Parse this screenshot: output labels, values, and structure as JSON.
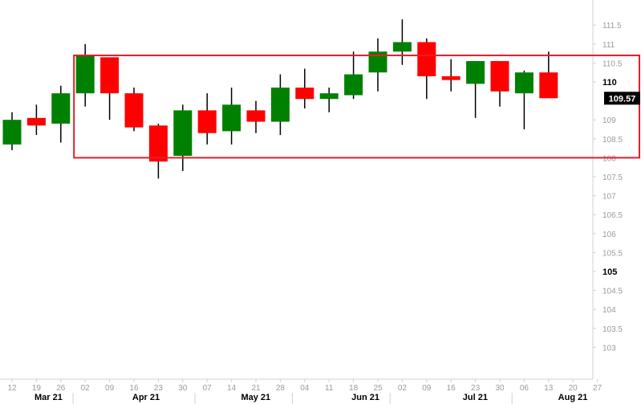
{
  "chart_data": {
    "type": "candlestick",
    "title": "",
    "xlabel": "",
    "ylabel": "",
    "ylim": [
      102.6,
      111.9
    ],
    "grid": false,
    "colors": {
      "up": "#008000",
      "down": "#ff0000",
      "highlight_box": "#e0202a",
      "last_value_bg": "#000000",
      "axis": "#d0d0d0"
    },
    "candles": [
      {
        "date": "12",
        "open": 108.35,
        "high": 109.2,
        "low": 108.2,
        "close": 109.0
      },
      {
        "date": "19",
        "open": 109.05,
        "high": 109.4,
        "low": 108.6,
        "close": 108.85
      },
      {
        "date": "26",
        "open": 108.9,
        "high": 109.9,
        "low": 108.4,
        "close": 109.7
      },
      {
        "date": "02",
        "open": 109.7,
        "high": 111.0,
        "low": 109.35,
        "close": 110.7
      },
      {
        "date": "09",
        "open": 110.65,
        "high": 110.6,
        "low": 109.0,
        "close": 109.7
      },
      {
        "date": "16",
        "open": 109.7,
        "high": 109.85,
        "low": 108.7,
        "close": 108.8
      },
      {
        "date": "23",
        "open": 108.85,
        "high": 108.9,
        "low": 107.45,
        "close": 107.9
      },
      {
        "date": "30",
        "open": 108.05,
        "high": 109.4,
        "low": 107.65,
        "close": 109.25
      },
      {
        "date": "07",
        "open": 109.25,
        "high": 109.7,
        "low": 108.35,
        "close": 108.65
      },
      {
        "date": "14",
        "open": 108.7,
        "high": 109.85,
        "low": 108.35,
        "close": 109.4
      },
      {
        "date": "21",
        "open": 109.25,
        "high": 109.5,
        "low": 108.65,
        "close": 108.95
      },
      {
        "date": "28",
        "open": 108.95,
        "high": 110.2,
        "low": 108.6,
        "close": 109.85
      },
      {
        "date": "04",
        "open": 109.85,
        "high": 110.35,
        "low": 109.3,
        "close": 109.55
      },
      {
        "date": "11",
        "open": 109.55,
        "high": 109.85,
        "low": 109.2,
        "close": 109.7
      },
      {
        "date": "18",
        "open": 109.65,
        "high": 110.8,
        "low": 109.55,
        "close": 110.2
      },
      {
        "date": "25",
        "open": 110.25,
        "high": 111.15,
        "low": 109.75,
        "close": 110.8
      },
      {
        "date": "02",
        "open": 110.8,
        "high": 111.65,
        "low": 110.45,
        "close": 111.05
      },
      {
        "date": "09",
        "open": 111.05,
        "high": 111.15,
        "low": 109.55,
        "close": 110.15
      },
      {
        "date": "16",
        "open": 110.15,
        "high": 110.6,
        "low": 109.75,
        "close": 110.05
      },
      {
        "date": "23",
        "open": 109.95,
        "high": 110.55,
        "low": 109.05,
        "close": 110.55
      },
      {
        "date": "30",
        "open": 110.55,
        "high": 110.55,
        "low": 109.35,
        "close": 109.75
      },
      {
        "date": "06",
        "open": 109.7,
        "high": 110.3,
        "low": 108.75,
        "close": 110.25
      },
      {
        "date": "13",
        "open": 110.25,
        "high": 110.8,
        "low": 109.6,
        "close": 109.57
      }
    ],
    "x_tick_labels": [
      "12",
      "19",
      "26",
      "02",
      "09",
      "16",
      "23",
      "30",
      "07",
      "14",
      "21",
      "28",
      "04",
      "11",
      "18",
      "25",
      "02",
      "09",
      "16",
      "23",
      "30",
      "06",
      "13",
      "20",
      "27"
    ],
    "month_labels": [
      {
        "label": "Mar 21",
        "tick_index": 1
      },
      {
        "label": "Apr 21",
        "tick_index": 5
      },
      {
        "label": "May 21",
        "tick_index": 9.5
      },
      {
        "label": "Jun 21",
        "tick_index": 14
      },
      {
        "label": "Jul 21",
        "tick_index": 18.5
      },
      {
        "label": "Aug 21",
        "tick_index": 22.5
      }
    ],
    "month_separator_after_ticks": [
      2,
      7,
      11,
      15,
      20
    ],
    "y_tick_labels": [
      {
        "value": 103,
        "label": "103",
        "major": false
      },
      {
        "value": 103.5,
        "label": "103.5",
        "major": false
      },
      {
        "value": 104,
        "label": "104",
        "major": false
      },
      {
        "value": 104.5,
        "label": "104.5",
        "major": false
      },
      {
        "value": 105,
        "label": "105",
        "major": true
      },
      {
        "value": 105.5,
        "label": "105.5",
        "major": false
      },
      {
        "value": 106,
        "label": "106",
        "major": false
      },
      {
        "value": 106.5,
        "label": "106.5",
        "major": false
      },
      {
        "value": 107,
        "label": "107",
        "major": false
      },
      {
        "value": 107.5,
        "label": "107.5",
        "major": false
      },
      {
        "value": 108,
        "label": "108",
        "major": false
      },
      {
        "value": 108.5,
        "label": "108.5",
        "major": false
      },
      {
        "value": 109,
        "label": "109",
        "major": false
      },
      {
        "value": 110,
        "label": "110",
        "major": true
      },
      {
        "value": 110.5,
        "label": "110.5",
        "major": false
      },
      {
        "value": 111,
        "label": "111",
        "major": false
      },
      {
        "value": 111.5,
        "label": "111.5",
        "major": false
      }
    ],
    "last_value": {
      "value": 109.57,
      "label": "109.57"
    },
    "highlight_range": {
      "y_low": 108.0,
      "y_high": 110.7,
      "from_tick": 3,
      "to_tick": 25
    }
  }
}
